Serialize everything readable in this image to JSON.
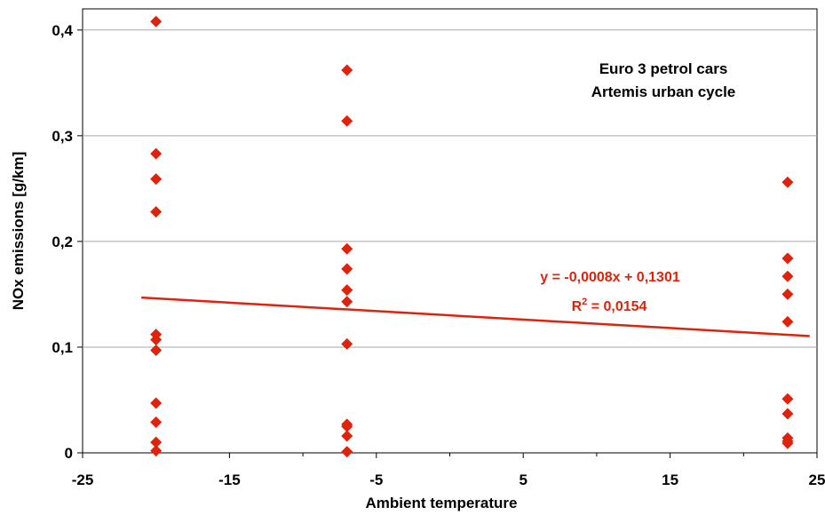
{
  "chart_data": {
    "type": "scatter",
    "xlabel": "Ambient temperature",
    "ylabel": "NOx emissions [g/km]",
    "annotations": [
      "Euro 3 petrol cars",
      "Artemis urban cycle"
    ],
    "xlim": [
      -25,
      25
    ],
    "ylim": [
      0,
      0.42
    ],
    "x_ticks": [
      -25,
      -15,
      -5,
      5,
      15,
      25
    ],
    "x_tick_labels": [
      "-25",
      "-15",
      "-5",
      "5",
      "15",
      "25"
    ],
    "y_ticks": [
      0,
      0.1,
      0.2,
      0.3,
      0.4
    ],
    "y_tick_labels": [
      "0",
      "0,1",
      "0,2",
      "0,3",
      "0,4"
    ],
    "grid": "horizontal",
    "marker_color": "#e0220a",
    "series": [
      {
        "x": [
          -20,
          -20,
          -20,
          -20,
          -20,
          -20,
          -20,
          -20,
          -20,
          -20,
          -20,
          -7,
          -7,
          -7,
          -7,
          -7,
          -7,
          -7,
          -7,
          -7,
          -7,
          -7,
          23,
          23,
          23,
          23,
          23,
          23,
          23,
          23,
          23,
          23
        ],
        "y": [
          0.408,
          0.283,
          0.259,
          0.228,
          0.112,
          0.107,
          0.097,
          0.047,
          0.029,
          0.01,
          0.002,
          0.362,
          0.314,
          0.193,
          0.174,
          0.154,
          0.143,
          0.103,
          0.027,
          0.025,
          0.016,
          0.001,
          0.256,
          0.184,
          0.167,
          0.15,
          0.124,
          0.051,
          0.037,
          0.014,
          0.011,
          0.009
        ]
      }
    ],
    "trendline": {
      "x_range": [
        -21,
        24.5
      ],
      "slope": -0.0008,
      "intercept": 0.1301,
      "color": "#e0220a",
      "equation": "y = -0,0008x + 0,1301",
      "r2_prefix": "R",
      "r2_sup": "2",
      "r2_value": " = 0,0154"
    }
  }
}
